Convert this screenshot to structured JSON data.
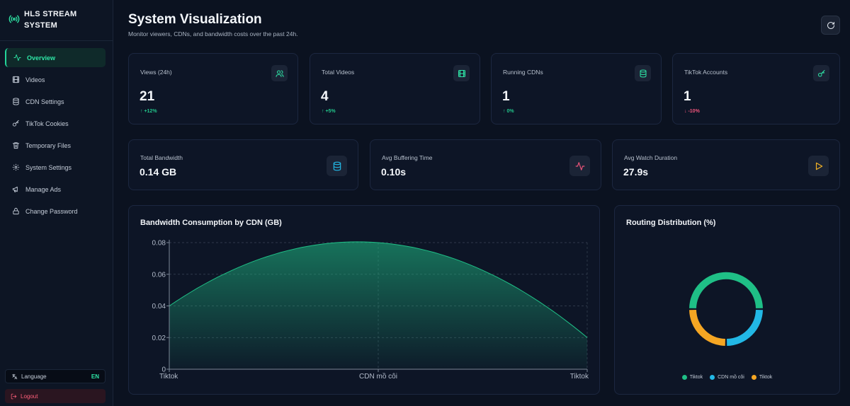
{
  "brand": {
    "line1": "HLS STREAM",
    "line2": "SYSTEM",
    "icon": "broadcast-icon"
  },
  "sidebar": {
    "items": [
      {
        "label": "Overview",
        "icon": "activity-icon",
        "active": true
      },
      {
        "label": "Videos",
        "icon": "film-icon"
      },
      {
        "label": "CDN Settings",
        "icon": "database-icon"
      },
      {
        "label": "TikTok Cookies",
        "icon": "key-icon"
      },
      {
        "label": "Temporary Files",
        "icon": "trash-icon"
      },
      {
        "label": "System Settings",
        "icon": "gear-icon"
      },
      {
        "label": "Manage Ads",
        "icon": "megaphone-icon"
      },
      {
        "label": "Change Password",
        "icon": "lock-icon"
      }
    ],
    "language": {
      "label": "Language",
      "code": "EN"
    },
    "logout": "Logout"
  },
  "header": {
    "title": "System Visualization",
    "subtitle": "Monitor viewers, CDNs, and bandwidth costs over the past 24h."
  },
  "stats": [
    {
      "label": "Views (24h)",
      "value": "21",
      "trend": "+12%",
      "dir": "up",
      "icon": "users-icon"
    },
    {
      "label": "Total Videos",
      "value": "4",
      "trend": "+5%",
      "dir": "up",
      "icon": "film-icon"
    },
    {
      "label": "Running CDNs",
      "value": "1",
      "trend": "0%",
      "dir": "up",
      "icon": "database-icon"
    },
    {
      "label": "TikTok Accounts",
      "value": "1",
      "trend": "-10%",
      "dir": "down",
      "icon": "key-icon"
    }
  ],
  "metrics": [
    {
      "label": "Total Bandwidth",
      "value": "0.14 GB",
      "icon": "database-icon",
      "color": "#22b8e6"
    },
    {
      "label": "Avg Buffering Time",
      "value": "0.10s",
      "icon": "activity-icon",
      "color": "#f0557b"
    },
    {
      "label": "Avg Watch Duration",
      "value": "27.9s",
      "icon": "play-icon",
      "color": "#f5b325"
    }
  ],
  "bandwidth_chart": {
    "title": "Bandwidth Consumption by CDN (GB)",
    "ytick_labels": [
      "0.08",
      "0.06",
      "0.04",
      "0.02",
      "0"
    ],
    "xtick_labels": [
      "Tiktok",
      "CDN mồ côi",
      "Tiktok"
    ]
  },
  "routing_chart": {
    "title": "Routing Distribution (%)",
    "legend": [
      {
        "name": "Tiktok",
        "color": "#1fbf86"
      },
      {
        "name": "CDN mồ côi",
        "color": "#22b8e6"
      },
      {
        "name": "Tiktok",
        "color": "#f5a623"
      }
    ]
  },
  "chart_data": [
    {
      "type": "area",
      "title": "Bandwidth Consumption by CDN (GB)",
      "categories": [
        "Tiktok",
        "CDN mồ côi",
        "Tiktok"
      ],
      "values": [
        0.04,
        0.08,
        0.02
      ],
      "ylim": [
        0,
        0.08
      ],
      "yticks": [
        0,
        0.02,
        0.04,
        0.06,
        0.08
      ],
      "grid": true,
      "color": "#1fbf86"
    },
    {
      "type": "pie",
      "title": "Routing Distribution (%)",
      "categories": [
        "Tiktok",
        "CDN mồ côi",
        "Tiktok"
      ],
      "values": [
        50,
        25,
        25
      ],
      "colors": [
        "#1fbf86",
        "#22b8e6",
        "#f5a623"
      ],
      "legend": "bottom"
    }
  ]
}
